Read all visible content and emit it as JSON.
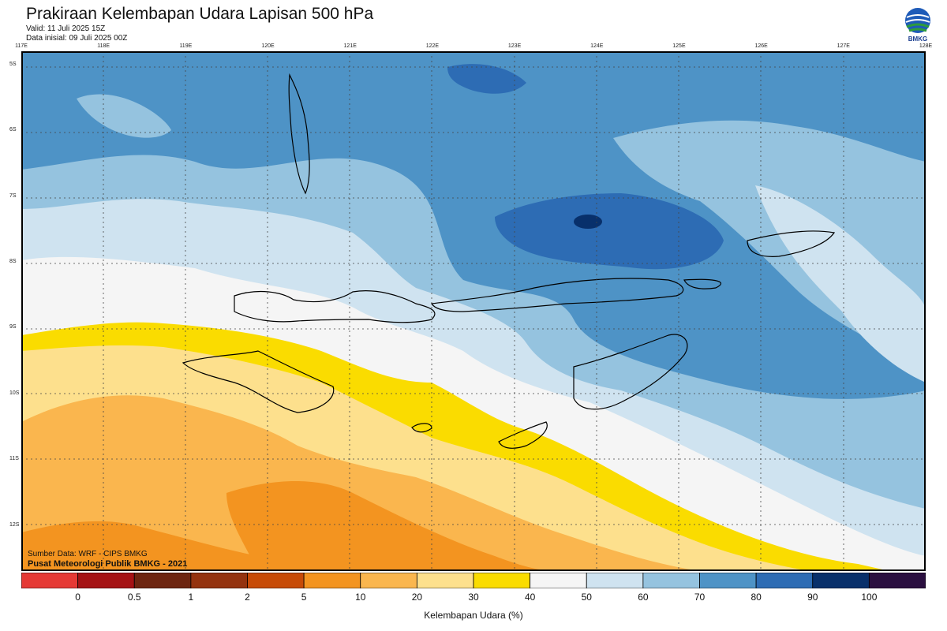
{
  "header": {
    "title": "Prakiraan Kelembapan Udara Lapisan 500 hPa",
    "valid": "Valid: 11 Juli 2025 15Z",
    "init": "Data inisial: 09 Juli 2025 00Z"
  },
  "logo": {
    "text": "BMKG",
    "icon": "bmkg-logo"
  },
  "axes": {
    "lon_labels": [
      "117E",
      "118E",
      "119E",
      "120E",
      "121E",
      "122E",
      "123E",
      "124E",
      "125E",
      "126E",
      "127E",
      "128E"
    ],
    "lat_labels": [
      "5S",
      "6S",
      "7S",
      "8S",
      "9S",
      "10S",
      "11S",
      "12S"
    ],
    "lon_range": [
      117,
      128
    ],
    "lat_range": [
      -4.8,
      -12.7
    ]
  },
  "credits": {
    "source": "Sumber Data: WRF - CIPS BMKG",
    "org": "Pusat Meteorologi Publik BMKG - 2021"
  },
  "colorbar": {
    "title": "Kelembapan Udara (%)",
    "ticks": [
      "0",
      "0.5",
      "1",
      "2",
      "5",
      "10",
      "20",
      "30",
      "40",
      "50",
      "60",
      "70",
      "80",
      "90",
      "100"
    ],
    "colors": [
      "#e53935",
      "#a51214",
      "#6d2510",
      "#94330f",
      "#c74b07",
      "#f39420",
      "#fab64e",
      "#fde08d",
      "#fadc00",
      "#f5f5f5",
      "#cfe3f0",
      "#95c3df",
      "#4e93c6",
      "#2d6cb4",
      "#08306b",
      "#2b0f40"
    ]
  },
  "chart_data": {
    "type": "heatmap",
    "title": "Prakiraan Kelembapan Udara Lapisan 500 hPa",
    "xlabel": "",
    "ylabel": "",
    "colorbar_label": "Kelembapan Udara (%)",
    "x_range": [
      117,
      128
    ],
    "y_range": [
      -4.8,
      -12.7
    ],
    "levels": [
      0,
      0.5,
      1,
      2,
      5,
      10,
      20,
      30,
      40,
      50,
      60,
      70,
      80,
      90,
      100
    ],
    "grid": true,
    "regions": [
      {
        "area": "north (5S-8S)",
        "humidity_range": [
          70,
          90
        ]
      },
      {
        "area": "center 123E-125E near 7.5S",
        "humidity_range": [
          80,
          100
        ]
      },
      {
        "area": "9S band",
        "humidity_range": [
          40,
          60
        ]
      },
      {
        "area": "south-west (10S-12.7S, 117E-122E)",
        "humidity_range": [
          10,
          30
        ]
      },
      {
        "area": "south-east (11S-12.7S, 126E-128E)",
        "humidity_range": [
          50,
          70
        ]
      }
    ]
  }
}
